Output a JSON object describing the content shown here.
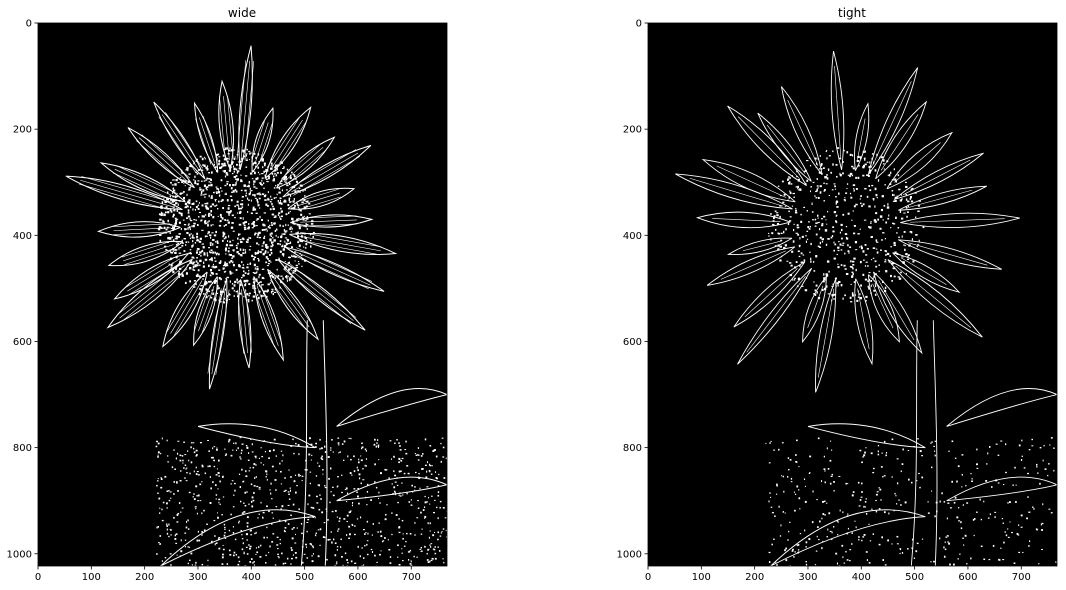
{
  "chart_data": [
    {
      "type": "image",
      "title": "wide",
      "image_description": "Canny edge map of a sunflower (wide thresholds): dense white edges on black background",
      "xlim": [
        0,
        767
      ],
      "ylim": [
        1023,
        0
      ],
      "x_ticks": [
        0,
        100,
        200,
        300,
        400,
        500,
        600,
        700
      ],
      "y_ticks": [
        0,
        200,
        400,
        600,
        800,
        1000
      ],
      "colors": {
        "background": "#000000",
        "edges": "#ffffff"
      }
    },
    {
      "type": "image",
      "title": "tight",
      "image_description": "Canny edge map of a sunflower (tight thresholds): sparser white edges on black background",
      "xlim": [
        0,
        767
      ],
      "ylim": [
        1023,
        0
      ],
      "x_ticks": [
        0,
        100,
        200,
        300,
        400,
        500,
        600,
        700
      ],
      "y_ticks": [
        0,
        200,
        400,
        600,
        800,
        1000
      ],
      "colors": {
        "background": "#000000",
        "edges": "#ffffff"
      }
    }
  ]
}
